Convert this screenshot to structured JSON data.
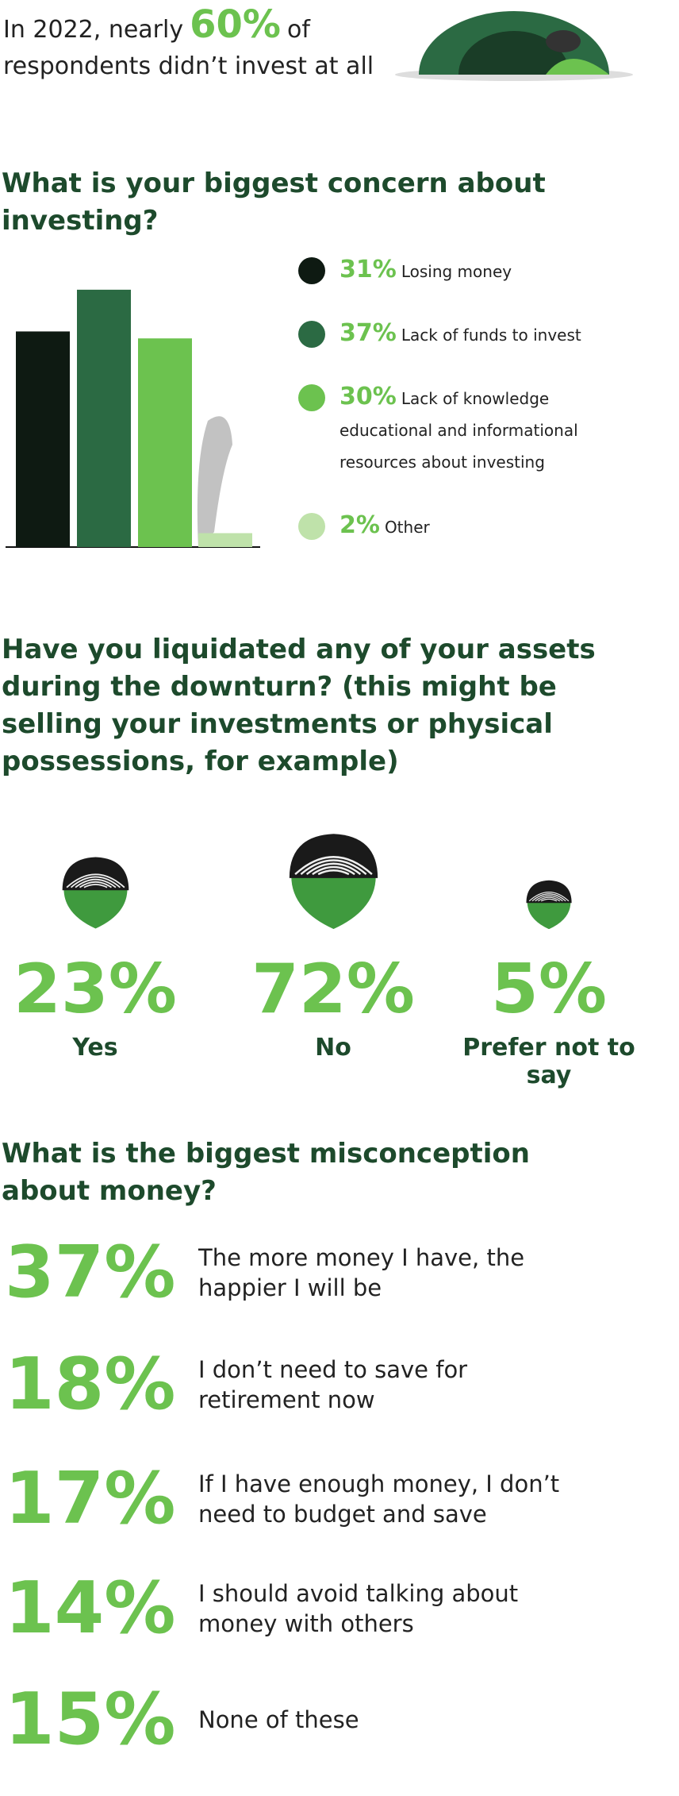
{
  "intro": {
    "lead": "In 2022, nearly",
    "highlight": "60%",
    "tail": "of",
    "line2": "respondents didn’t invest at all"
  },
  "chart_data": {
    "type": "bar",
    "title": "What is your biggest concern about investing?",
    "categories": [
      "Losing money",
      "Lack of funds to invest",
      "Lack of knowledge educational and informational resources about investing",
      "Other"
    ],
    "values": [
      31,
      37,
      30,
      2
    ],
    "value_labels": [
      "31%",
      "37%",
      "30%",
      "2%"
    ],
    "colors": [
      "#0e1a12",
      "#2b6a43",
      "#6cc24f",
      "#bfe2aa"
    ]
  },
  "liquidation": {
    "question": "Have you liquidated any of your assets during the downturn? (this might be selling your investments or physical possessions, for example)",
    "items": [
      {
        "value": 23,
        "label": "23%",
        "answer": "Yes"
      },
      {
        "value": 72,
        "label": "72%",
        "answer": "No"
      },
      {
        "value": 5,
        "label": "5%",
        "answer": "Prefer not to say"
      }
    ]
  },
  "misconception": {
    "question": "What is the biggest misconception about money?",
    "items": [
      {
        "label": "37%",
        "text": "The more money I have, the happier I will be"
      },
      {
        "label": "18%",
        "text": "I don’t need to save for retirement now"
      },
      {
        "label": "17%",
        "text": "If I have enough money, I don’t need to budget and save"
      },
      {
        "label": "14%",
        "text": "I should avoid talking about money with others"
      },
      {
        "label": "15%",
        "text": "None of these"
      }
    ]
  }
}
